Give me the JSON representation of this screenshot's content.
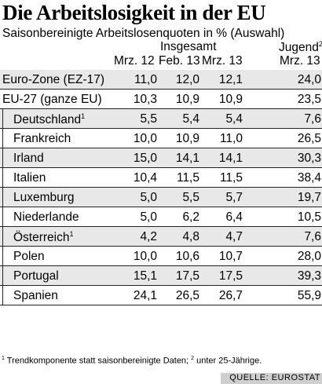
{
  "title": "Die Arbeitslosigkeit in der EU",
  "subtitle": "Saisonbereinigte Arbeitslosenquoten in % (Auswahl)",
  "header": {
    "group_total": "Insgesamt",
    "group_youth": "Jugend",
    "youth_footnote_mark": "2",
    "columns": [
      "Mrz. 12",
      "Feb. 13",
      "Mrz. 13",
      "Mrz. 13"
    ]
  },
  "chart_data": {
    "type": "table",
    "title": "Die Arbeitslosigkeit in der EU",
    "subtitle": "Saisonbereinigte Arbeitslosenquoten in % (Auswahl)",
    "columns": [
      "Mrz. 12",
      "Feb. 13",
      "Mrz. 13",
      "Jugend Mrz. 13"
    ],
    "rows": [
      {
        "label": "Euro-Zone (EZ-17)",
        "indent": false,
        "mark": "",
        "values": [
          "11,0",
          "12,0",
          "12,1",
          "24,0"
        ]
      },
      {
        "label": "EU-27 (ganze EU)",
        "indent": false,
        "mark": "",
        "values": [
          "10,3",
          "10,9",
          "10,9",
          "23,5"
        ]
      },
      {
        "label": "Deutschland",
        "indent": true,
        "mark": "1",
        "values": [
          "5,5",
          "5,4",
          "5,4",
          "7,6"
        ]
      },
      {
        "label": "Frankreich",
        "indent": true,
        "mark": "",
        "values": [
          "10,0",
          "10,9",
          "11,0",
          "26,5"
        ]
      },
      {
        "label": "Irland",
        "indent": true,
        "mark": "",
        "values": [
          "15,0",
          "14,1",
          "14,1",
          "30,3"
        ]
      },
      {
        "label": "Italien",
        "indent": true,
        "mark": "",
        "values": [
          "10,4",
          "11,5",
          "11,5",
          "38,4"
        ]
      },
      {
        "label": "Luxemburg",
        "indent": true,
        "mark": "",
        "values": [
          "5,0",
          "5,5",
          "5,7",
          "19,7"
        ]
      },
      {
        "label": "Niederlande",
        "indent": true,
        "mark": "",
        "values": [
          "5,0",
          "6,2",
          "6,4",
          "10,5"
        ]
      },
      {
        "label": "Österreich",
        "indent": true,
        "mark": "1",
        "values": [
          "4,2",
          "4,8",
          "4,7",
          "7,6"
        ]
      },
      {
        "label": "Polen",
        "indent": true,
        "mark": "",
        "values": [
          "10,0",
          "10,6",
          "10,7",
          "28,0"
        ]
      },
      {
        "label": "Portugal",
        "indent": true,
        "mark": "",
        "values": [
          "15,1",
          "17,5",
          "17,5",
          "39,3"
        ]
      },
      {
        "label": "Spanien",
        "indent": true,
        "mark": "",
        "values": [
          "24,1",
          "26,5",
          "26,7",
          "55,9"
        ]
      }
    ]
  },
  "footnote": {
    "mark1": "1",
    "text1": " Trendkomponente statt saisonbereinigte Daten; ",
    "mark2": "2",
    "text2": " unter 25-Jährige."
  },
  "source": "QUELLE: EUROSTAT",
  "colors": {
    "row_shade": "#e8e8e8",
    "row_plain": "#ffffff",
    "rule": "#222222",
    "source_bg": "#cfcfcf"
  }
}
